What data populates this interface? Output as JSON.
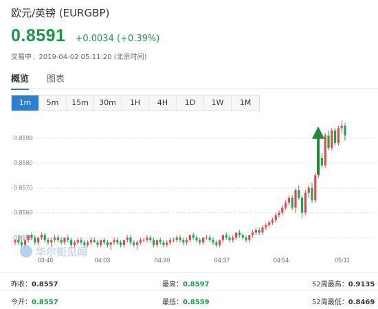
{
  "header": {
    "title": "欧元/英镑 (EURGBP)",
    "price": "0.8591",
    "change": "+0.0034 (+0.39%)",
    "status": "交易中",
    "datetime": "2019-04-02 05:11:20 (北京时间)"
  },
  "tabs": [
    "概览",
    "图表"
  ],
  "ranges": [
    "1m",
    "5m",
    "15m",
    "30m",
    "1H",
    "4H",
    "1D",
    "1W",
    "1M"
  ],
  "active_range": "1m",
  "colors": {
    "up": "#159a48",
    "candle_up": "#e8474c",
    "candle_down": "#1ba74f",
    "accent": "#2a7fd4"
  },
  "watermark": "华尔街见闻",
  "stats": {
    "prev_close_label": "昨收",
    "prev_close": "0.8557",
    "high_label": "最高",
    "high": "0.8597",
    "week52_high_label": "52周最高",
    "week52_high": "0.9135",
    "open_label": "今开",
    "open": "0.8557",
    "low_label": "最低",
    "low": "0.8559",
    "week52_low_label": "52周最低",
    "week52_low": "0.8469"
  },
  "chart_data": {
    "type": "candlestick",
    "y_ticks": [
      "0.8590",
      "0.8580",
      "0.8570",
      "0.8560",
      "0.8550"
    ],
    "x_ticks": [
      "03:46",
      "04:03",
      "04:20",
      "04:37",
      "04:54",
      "05:11"
    ],
    "ylim": [
      0.8545,
      0.8598
    ],
    "grid": "dashed",
    "annotation": "green up arrow near 05:05",
    "candles": [
      [
        0.8548,
        0.8549,
        0.8547,
        0.8549
      ],
      [
        0.8549,
        0.8551,
        0.8547,
        0.8548
      ],
      [
        0.8548,
        0.8549,
        0.8546,
        0.8547
      ],
      [
        0.8547,
        0.8549,
        0.8546,
        0.8549
      ],
      [
        0.8549,
        0.8551,
        0.8548,
        0.8551
      ],
      [
        0.8551,
        0.8552,
        0.8549,
        0.855
      ],
      [
        0.855,
        0.8551,
        0.8547,
        0.8548
      ],
      [
        0.8548,
        0.855,
        0.8547,
        0.855
      ],
      [
        0.855,
        0.8552,
        0.8549,
        0.8551
      ],
      [
        0.8551,
        0.8552,
        0.8548,
        0.8549
      ],
      [
        0.8549,
        0.855,
        0.8547,
        0.8548
      ],
      [
        0.8548,
        0.855,
        0.8546,
        0.8549
      ],
      [
        0.8549,
        0.8551,
        0.8548,
        0.855
      ],
      [
        0.855,
        0.8551,
        0.8548,
        0.8549
      ],
      [
        0.8549,
        0.855,
        0.8547,
        0.8548
      ],
      [
        0.8548,
        0.855,
        0.8547,
        0.855
      ],
      [
        0.855,
        0.8551,
        0.8548,
        0.8549
      ],
      [
        0.8549,
        0.855,
        0.8546,
        0.8547
      ],
      [
        0.8547,
        0.8549,
        0.8546,
        0.8548
      ],
      [
        0.8548,
        0.855,
        0.8547,
        0.8549
      ],
      [
        0.8549,
        0.855,
        0.8547,
        0.8548
      ],
      [
        0.8548,
        0.8549,
        0.8546,
        0.8547
      ],
      [
        0.8547,
        0.8549,
        0.8546,
        0.8548
      ],
      [
        0.8548,
        0.855,
        0.8547,
        0.8549
      ],
      [
        0.8549,
        0.855,
        0.8548,
        0.8548
      ],
      [
        0.8548,
        0.8549,
        0.8546,
        0.8547
      ],
      [
        0.8547,
        0.8549,
        0.8546,
        0.8549
      ],
      [
        0.8549,
        0.855,
        0.8547,
        0.8548
      ],
      [
        0.8548,
        0.8549,
        0.8546,
        0.8547
      ],
      [
        0.8547,
        0.8548,
        0.8545,
        0.8548
      ],
      [
        0.8548,
        0.855,
        0.8547,
        0.8549
      ],
      [
        0.8549,
        0.855,
        0.8547,
        0.8548
      ],
      [
        0.8548,
        0.8549,
        0.8546,
        0.8547
      ],
      [
        0.8547,
        0.8549,
        0.8546,
        0.8549
      ],
      [
        0.8549,
        0.8551,
        0.8548,
        0.855
      ],
      [
        0.855,
        0.8551,
        0.8547,
        0.8548
      ],
      [
        0.8548,
        0.8549,
        0.8546,
        0.8547
      ],
      [
        0.8547,
        0.8549,
        0.8545,
        0.8548
      ],
      [
        0.8548,
        0.855,
        0.8547,
        0.8549
      ],
      [
        0.8549,
        0.855,
        0.8548,
        0.8549
      ],
      [
        0.8549,
        0.8551,
        0.8548,
        0.855
      ],
      [
        0.855,
        0.8551,
        0.8548,
        0.8549
      ],
      [
        0.8549,
        0.855,
        0.8546,
        0.8547
      ],
      [
        0.8547,
        0.8549,
        0.8546,
        0.8549
      ],
      [
        0.8549,
        0.855,
        0.8547,
        0.8548
      ],
      [
        0.8548,
        0.8549,
        0.8546,
        0.8547
      ],
      [
        0.8547,
        0.8549,
        0.8546,
        0.8548
      ],
      [
        0.8548,
        0.855,
        0.8547,
        0.8549
      ],
      [
        0.8549,
        0.855,
        0.8548,
        0.8549
      ],
      [
        0.8549,
        0.8551,
        0.8548,
        0.855
      ],
      [
        0.855,
        0.8551,
        0.8548,
        0.8549
      ],
      [
        0.8549,
        0.855,
        0.8547,
        0.8548
      ],
      [
        0.8548,
        0.855,
        0.8547,
        0.8549
      ],
      [
        0.8549,
        0.8551,
        0.8548,
        0.8551
      ],
      [
        0.8551,
        0.8552,
        0.8549,
        0.855
      ],
      [
        0.855,
        0.8551,
        0.8548,
        0.8549
      ],
      [
        0.8549,
        0.855,
        0.8547,
        0.8548
      ],
      [
        0.8548,
        0.855,
        0.8547,
        0.855
      ],
      [
        0.855,
        0.8551,
        0.8549,
        0.855
      ],
      [
        0.855,
        0.8551,
        0.8548,
        0.8549
      ],
      [
        0.8549,
        0.855,
        0.8547,
        0.8548
      ],
      [
        0.8548,
        0.8549,
        0.8546,
        0.8547
      ],
      [
        0.8547,
        0.8549,
        0.8546,
        0.8549
      ],
      [
        0.8549,
        0.8551,
        0.8548,
        0.8551
      ],
      [
        0.8551,
        0.8552,
        0.8549,
        0.855
      ],
      [
        0.855,
        0.8551,
        0.8548,
        0.8549
      ],
      [
        0.8549,
        0.8551,
        0.8548,
        0.855
      ],
      [
        0.855,
        0.8552,
        0.8549,
        0.8552
      ],
      [
        0.8552,
        0.8553,
        0.855,
        0.8551
      ],
      [
        0.8551,
        0.8552,
        0.8549,
        0.855
      ],
      [
        0.855,
        0.8551,
        0.8548,
        0.8549
      ],
      [
        0.8549,
        0.8551,
        0.8548,
        0.8551
      ],
      [
        0.8551,
        0.8553,
        0.855,
        0.8552
      ],
      [
        0.8552,
        0.8554,
        0.8551,
        0.8553
      ],
      [
        0.8553,
        0.8554,
        0.8551,
        0.8552
      ],
      [
        0.8552,
        0.8555,
        0.8551,
        0.8554
      ],
      [
        0.8554,
        0.8556,
        0.8553,
        0.8555
      ],
      [
        0.8555,
        0.8557,
        0.8554,
        0.8556
      ],
      [
        0.8556,
        0.8558,
        0.8555,
        0.8557
      ],
      [
        0.8557,
        0.856,
        0.8556,
        0.8559
      ],
      [
        0.8559,
        0.8561,
        0.8558,
        0.856
      ],
      [
        0.856,
        0.8563,
        0.8559,
        0.8562
      ],
      [
        0.8562,
        0.8565,
        0.8561,
        0.8564
      ],
      [
        0.8564,
        0.8567,
        0.8563,
        0.8566
      ],
      [
        0.8566,
        0.8567,
        0.8561,
        0.8562
      ],
      [
        0.8562,
        0.857,
        0.856,
        0.8569
      ],
      [
        0.8569,
        0.8571,
        0.8565,
        0.8566
      ],
      [
        0.8566,
        0.8567,
        0.8558,
        0.856
      ],
      [
        0.856,
        0.8569,
        0.8559,
        0.8568
      ],
      [
        0.8568,
        0.8571,
        0.8566,
        0.857
      ],
      [
        0.857,
        0.8572,
        0.8564,
        0.8565
      ],
      [
        0.8565,
        0.8576,
        0.8564,
        0.8575
      ],
      [
        0.8575,
        0.8583,
        0.8574,
        0.8582
      ],
      [
        0.8582,
        0.8584,
        0.8578,
        0.8579
      ],
      [
        0.8579,
        0.8592,
        0.8578,
        0.8591
      ],
      [
        0.8591,
        0.8593,
        0.8585,
        0.8586
      ],
      [
        0.8586,
        0.8594,
        0.8585,
        0.8593
      ],
      [
        0.8593,
        0.8594,
        0.8587,
        0.8588
      ],
      [
        0.8588,
        0.8595,
        0.8587,
        0.8594
      ],
      [
        0.8594,
        0.8597,
        0.8592,
        0.8595
      ],
      [
        0.8595,
        0.8596,
        0.8589,
        0.8591
      ]
    ]
  }
}
